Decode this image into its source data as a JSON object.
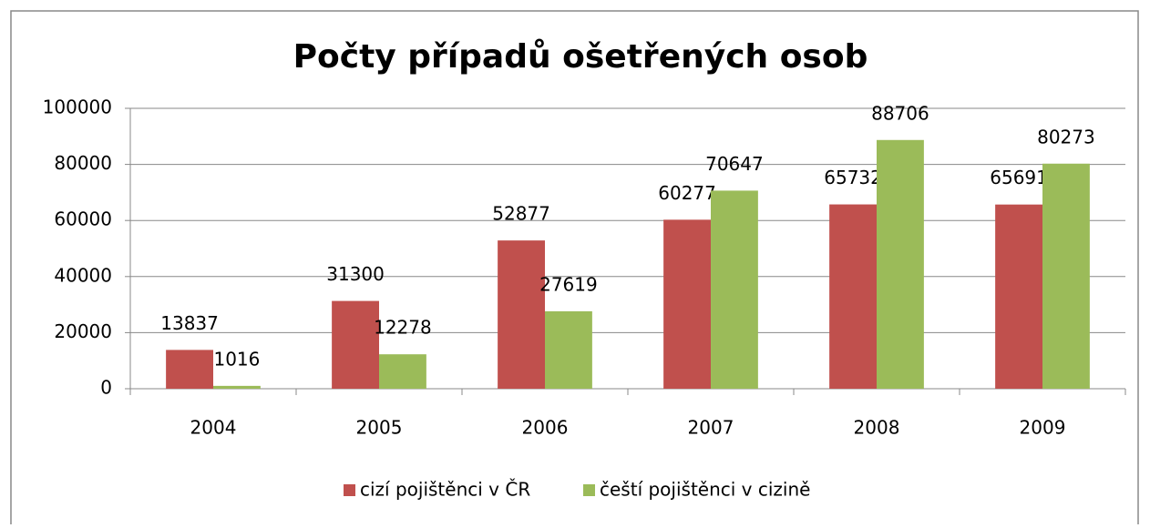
{
  "chart_data": {
    "type": "bar",
    "title": "Počty případů ošetřených osob",
    "categories": [
      "2004",
      "2005",
      "2006",
      "2007",
      "2008",
      "2009"
    ],
    "series": [
      {
        "name": "cizí pojištěnci v ČR",
        "color": "#c0504d",
        "values": [
          13837,
          31300,
          52877,
          60277,
          65732,
          65691
        ]
      },
      {
        "name": "čeští pojištěnci v cizině",
        "color": "#9bbb59",
        "values": [
          1016,
          12278,
          27619,
          70647,
          88706,
          80273
        ]
      }
    ],
    "ylim": [
      0,
      100000
    ],
    "yticks": [
      0,
      20000,
      40000,
      60000,
      80000,
      100000
    ],
    "grid": true,
    "legend": "bottom"
  }
}
